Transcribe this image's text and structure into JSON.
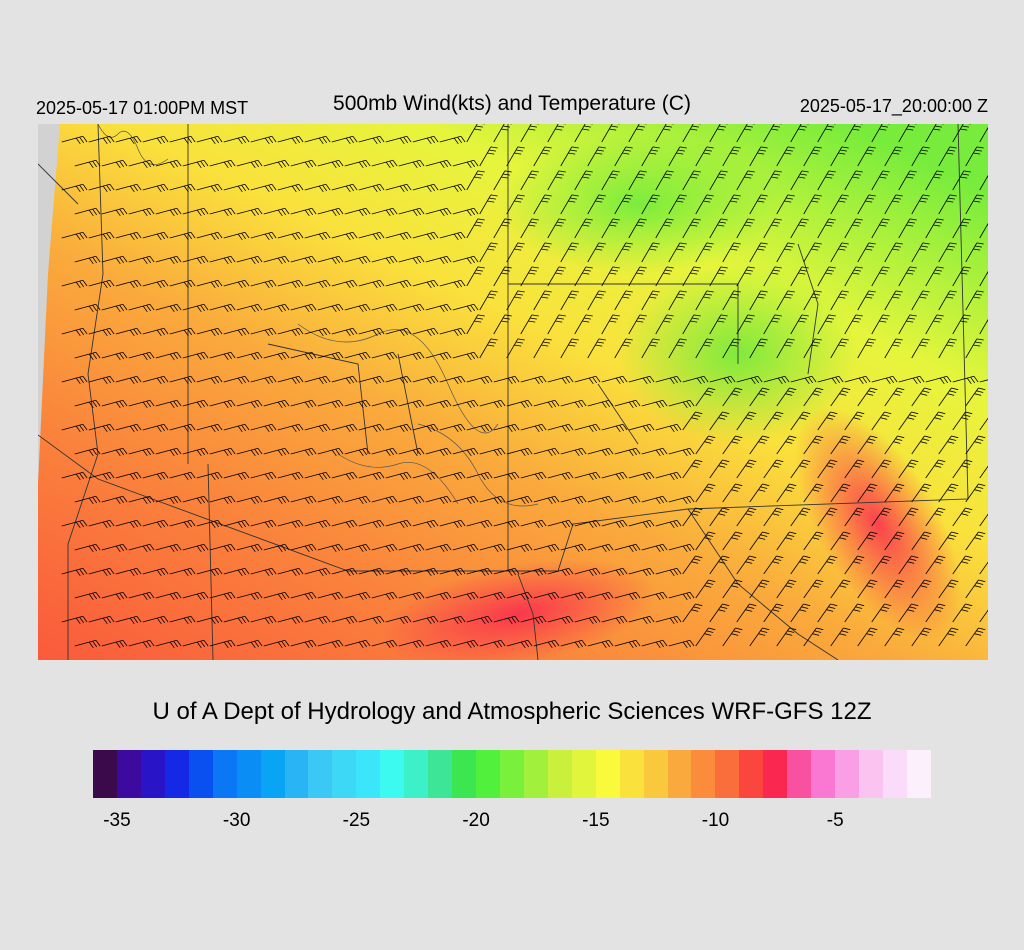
{
  "header": {
    "local_time": "2025-05-17 01:00PM MST",
    "title": "500mb Wind(kts) and Temperature (C)",
    "valid_time": "2025-05-17_20:00:00 Z"
  },
  "credit": "U of A Dept of Hydrology and Atmospheric Sciences WRF-GFS 12Z",
  "legend": {
    "colors": [
      "#3a0a4a",
      "#3d0aa0",
      "#2a14c8",
      "#1428e6",
      "#0a50f0",
      "#0a78f5",
      "#0a8ef5",
      "#0aa4f5",
      "#28b4f5",
      "#3cc8f5",
      "#3cd8f5",
      "#3ce6fa",
      "#3cfaf0",
      "#3cf0c8",
      "#3ce696",
      "#3ce650",
      "#50f03c",
      "#78f03c",
      "#a0f03c",
      "#c8f03c",
      "#e1f53c",
      "#fafa3c",
      "#fae13c",
      "#fac83c",
      "#faaa3c",
      "#fa8c3c",
      "#fa6e3c",
      "#fa463c",
      "#fa2850",
      "#fa50a0",
      "#fa78d2",
      "#fa9ee6",
      "#fac3f0",
      "#fadcfa",
      "#fcf0fc"
    ],
    "ticks": [
      "-35",
      "-30",
      "-25",
      "-20",
      "-15",
      "-10",
      "-5"
    ]
  }
}
